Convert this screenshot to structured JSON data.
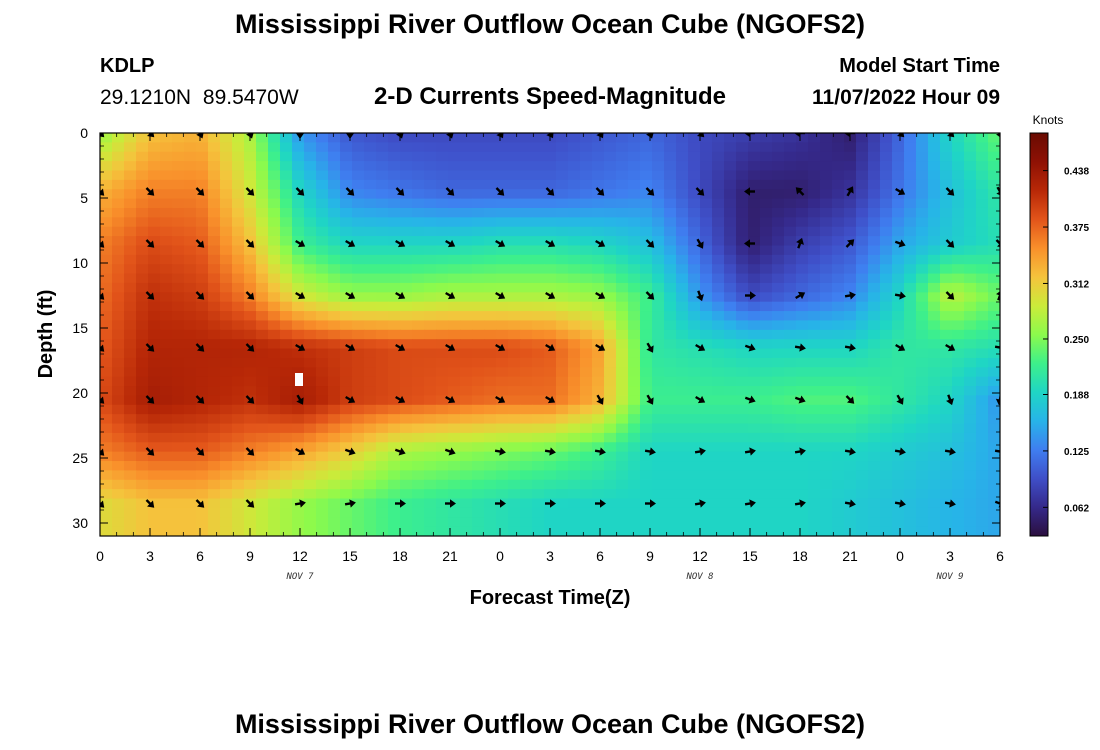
{
  "header": {
    "title": "Mississippi River Outflow Ocean Cube (NGOFS2)",
    "station": "KDLP",
    "coordinates": "29.1210N  89.5470W",
    "subtitle": "2-D Currents Speed-Magnitude",
    "start_label": "Model Start Time",
    "start_value": "11/07/2022 Hour 09"
  },
  "footer": {
    "title": "Mississippi River Outflow Ocean Cube (NGOFS2)"
  },
  "chart_data": {
    "type": "heatmap",
    "title": "2-D Currents Speed-Magnitude",
    "xlabel": "Forecast Time(Z)",
    "ylabel": "Depth (ft)",
    "x_tick_labels": [
      "0",
      "3",
      "6",
      "9",
      "12",
      "15",
      "18",
      "21",
      "0",
      "3",
      "6",
      "9",
      "12",
      "15",
      "18",
      "21",
      "0",
      "3",
      "6"
    ],
    "date_labels": [
      {
        "text": "NOV 7",
        "tick_index": 4
      },
      {
        "text": "NOV 8",
        "tick_index": 12
      },
      {
        "text": "NOV 9",
        "tick_index": 17
      }
    ],
    "y_ticks": [
      0,
      5,
      10,
      15,
      20,
      25,
      30
    ],
    "ylim": [
      0,
      31
    ],
    "x_hours_range": [
      0,
      54
    ],
    "colorbar": {
      "unit": "Knots",
      "tick_values": [
        "0.062",
        "0.125",
        "0.188",
        "0.250",
        "0.312",
        "0.375",
        "0.438"
      ],
      "range": [
        0.03,
        0.48
      ],
      "colors": [
        "#2b0f3e",
        "#35298a",
        "#3f4fc8",
        "#3f7ef0",
        "#27b4e8",
        "#1fd6c4",
        "#3ef08a",
        "#8cfa4c",
        "#cbeb3a",
        "#f5c33c",
        "#f9902b",
        "#e2541a",
        "#b82807",
        "#8e1104",
        "#690b02"
      ]
    },
    "speed_rows_depth_ft": [
      0,
      4.5,
      8.5,
      12.5,
      16.5,
      20.5,
      24.5,
      28.5
    ],
    "speed_columns_hours": [
      0,
      3,
      6,
      9,
      12,
      15,
      18,
      21,
      24,
      27,
      30,
      33,
      36,
      39,
      42,
      45,
      48,
      51,
      54
    ],
    "speed_knots": [
      [
        0.26,
        0.32,
        0.33,
        0.27,
        0.14,
        0.1,
        0.09,
        0.09,
        0.09,
        0.09,
        0.1,
        0.11,
        0.09,
        0.08,
        0.07,
        0.05,
        0.11,
        0.19,
        0.24
      ],
      [
        0.33,
        0.36,
        0.36,
        0.29,
        0.19,
        0.13,
        0.12,
        0.11,
        0.11,
        0.11,
        0.12,
        0.13,
        0.09,
        0.05,
        0.05,
        0.07,
        0.12,
        0.17,
        0.21
      ],
      [
        0.36,
        0.39,
        0.38,
        0.32,
        0.22,
        0.19,
        0.19,
        0.19,
        0.2,
        0.2,
        0.19,
        0.17,
        0.11,
        0.05,
        0.08,
        0.1,
        0.15,
        0.18,
        0.2
      ],
      [
        0.37,
        0.41,
        0.4,
        0.36,
        0.29,
        0.26,
        0.26,
        0.27,
        0.27,
        0.27,
        0.26,
        0.22,
        0.14,
        0.09,
        0.11,
        0.13,
        0.19,
        0.28,
        0.24
      ],
      [
        0.38,
        0.42,
        0.42,
        0.42,
        0.41,
        0.4,
        0.39,
        0.39,
        0.39,
        0.38,
        0.34,
        0.21,
        0.2,
        0.19,
        0.19,
        0.19,
        0.21,
        0.21,
        0.2
      ],
      [
        0.39,
        0.43,
        0.42,
        0.41,
        0.43,
        0.4,
        0.39,
        0.38,
        0.37,
        0.37,
        0.33,
        0.22,
        0.22,
        0.22,
        0.23,
        0.23,
        0.21,
        0.19,
        0.14
      ],
      [
        0.36,
        0.38,
        0.38,
        0.36,
        0.34,
        0.31,
        0.27,
        0.26,
        0.25,
        0.24,
        0.22,
        0.19,
        0.19,
        0.19,
        0.19,
        0.19,
        0.18,
        0.17,
        0.15
      ],
      [
        0.3,
        0.32,
        0.32,
        0.29,
        0.26,
        0.24,
        0.22,
        0.21,
        0.2,
        0.19,
        0.19,
        0.19,
        0.19,
        0.19,
        0.19,
        0.18,
        0.17,
        0.16,
        0.15
      ]
    ],
    "arrow_rows_depth_ft": [
      0,
      4.5,
      8.5,
      12.5,
      16.5,
      20.5,
      24.5,
      28.5
    ],
    "arrow_columns_hours": [
      0,
      3,
      6,
      9,
      12,
      15,
      18,
      21,
      24,
      27,
      30,
      33,
      36,
      39,
      42,
      45,
      48,
      51,
      54
    ],
    "arrow_direction_deg_cw_from_north": [
      [
        135,
        135,
        155,
        160,
        180,
        180,
        160,
        160,
        150,
        150,
        150,
        160,
        135,
        270,
        270,
        270,
        135,
        135,
        160
      ],
      [
        135,
        135,
        135,
        135,
        135,
        135,
        135,
        135,
        135,
        135,
        135,
        135,
        135,
        270,
        315,
        30,
        120,
        135,
        150
      ],
      [
        135,
        135,
        135,
        135,
        120,
        120,
        120,
        120,
        120,
        120,
        120,
        135,
        150,
        270,
        20,
        45,
        110,
        135,
        135
      ],
      [
        135,
        135,
        135,
        135,
        120,
        120,
        120,
        120,
        120,
        120,
        120,
        135,
        160,
        90,
        60,
        80,
        100,
        135,
        20
      ],
      [
        135,
        135,
        135,
        135,
        120,
        120,
        120,
        120,
        120,
        120,
        120,
        150,
        120,
        110,
        100,
        100,
        120,
        120,
        100
      ],
      [
        135,
        135,
        135,
        135,
        150,
        120,
        120,
        120,
        120,
        120,
        150,
        150,
        120,
        110,
        110,
        135,
        150,
        160,
        190
      ],
      [
        135,
        135,
        135,
        135,
        120,
        110,
        110,
        110,
        100,
        100,
        100,
        100,
        80,
        80,
        80,
        100,
        100,
        100,
        100
      ],
      [
        135,
        135,
        135,
        135,
        80,
        80,
        90,
        90,
        90,
        90,
        90,
        90,
        80,
        80,
        80,
        100,
        100,
        100,
        110
      ]
    ]
  }
}
